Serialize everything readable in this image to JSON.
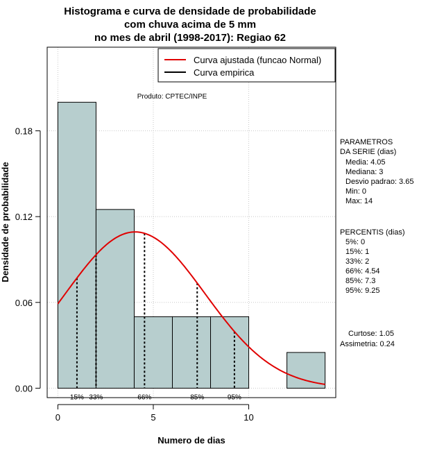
{
  "chart_data": {
    "type": "bar",
    "title_lines": [
      "Histograma e curva de densidade de probabilidade",
      "com chuva acima de 5 mm",
      "no mes de abril (1998-2017): Regiao 62"
    ],
    "xlabel": "Numero de dias",
    "ylabel": "Densidade de probabilidade",
    "xlim": [
      -0.56,
      14.56
    ],
    "ylim": [
      -0.0066,
      0.2385
    ],
    "x_ticks": [
      0,
      5,
      10
    ],
    "x_tick_labels": [
      "0",
      "5",
      "10"
    ],
    "y_ticks": [
      0.0,
      0.06,
      0.12,
      0.18
    ],
    "y_tick_labels": [
      "0.00",
      "0.06",
      "0.12",
      "0.18"
    ],
    "grid": true,
    "bins": [
      {
        "x0": 0,
        "x1": 2,
        "density": 0.2
      },
      {
        "x0": 2,
        "x1": 4,
        "density": 0.125
      },
      {
        "x0": 4,
        "x1": 6,
        "density": 0.05
      },
      {
        "x0": 6,
        "x1": 8,
        "density": 0.05
      },
      {
        "x0": 8,
        "x1": 10,
        "density": 0.05
      },
      {
        "x0": 10,
        "x1": 12,
        "density": 0
      },
      {
        "x0": 12,
        "x1": 14,
        "density": 0.025
      }
    ],
    "normal_fit": {
      "mean": 4.05,
      "sd": 3.65,
      "x_range": [
        0,
        14
      ],
      "color": "#e00000"
    },
    "percentile_lines": [
      {
        "label": "15%",
        "x": 1
      },
      {
        "label": "33%",
        "x": 2
      },
      {
        "label": "66%",
        "x": 4.54
      },
      {
        "label": "85%",
        "x": 7.3
      },
      {
        "label": "95%",
        "x": 9.25
      }
    ],
    "legend": [
      {
        "label": "Curva ajustada (funcao Normal)",
        "color": "#e00000"
      },
      {
        "label": "Curva empirica",
        "color": "#000000"
      }
    ],
    "legend_position": "top-right",
    "annotation": "Produto: CPTEC/INPE",
    "bar_color": "#b7cece"
  },
  "side_panel": {
    "params_title_1": "PARAMETROS",
    "params_title_2": "DA SERIE (dias)",
    "media": "Media: 4.05",
    "mediana": "Mediana: 3",
    "desvio": "Desvio padrao: 3.65",
    "min": "Min: 0",
    "max": "Max: 14",
    "perc_title": "PERCENTIS (dias)",
    "p5": "5%: 0",
    "p15": "15%: 1",
    "p33": "33%: 2",
    "p66": "66%: 4.54",
    "p85": "85%: 7.3",
    "p95": "95%: 9.25",
    "curtose": "Curtose: 1.05",
    "assimetria": "Assimetria: 0.24"
  }
}
